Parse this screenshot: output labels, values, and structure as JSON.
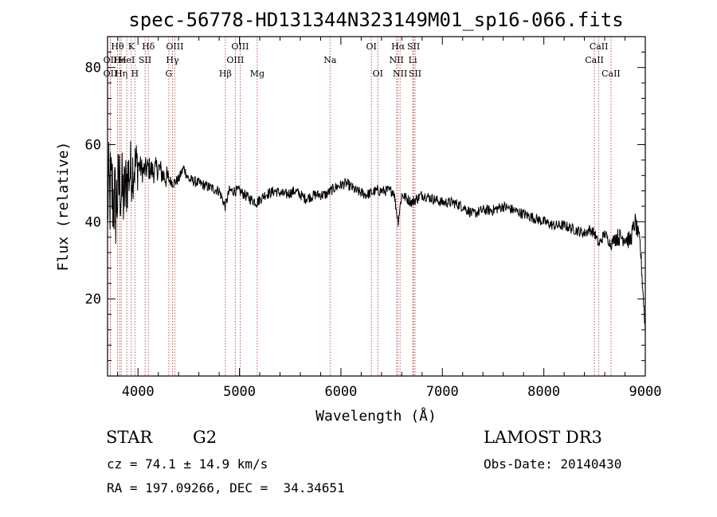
{
  "chart_data": {
    "type": "line",
    "title": "spec-56778-HD131344N323149M01_sp16-066.fits",
    "xlabel": "Wavelength (Å)",
    "ylabel": "Flux (relative)",
    "xlim": [
      3700,
      9000
    ],
    "ylim": [
      0,
      88
    ],
    "x_ticks": [
      4000,
      5000,
      6000,
      7000,
      8000,
      9000
    ],
    "y_ticks": [
      20,
      40,
      60,
      80
    ],
    "series": [
      {
        "name": "flux",
        "x": [
          3700,
          3740,
          3780,
          3820,
          3860,
          3900,
          3950,
          4000,
          4050,
          4100,
          4150,
          4200,
          4250,
          4300,
          4350,
          4400,
          4450,
          4500,
          4600,
          4700,
          4800,
          4860,
          4900,
          5000,
          5100,
          5170,
          5250,
          5350,
          5450,
          5550,
          5650,
          5750,
          5850,
          5950,
          6050,
          6150,
          6250,
          6350,
          6450,
          6520,
          6563,
          6600,
          6700,
          6800,
          6900,
          7000,
          7100,
          7200,
          7300,
          7400,
          7500,
          7600,
          7700,
          7800,
          7900,
          8000,
          8100,
          8200,
          8300,
          8400,
          8450,
          8500,
          8542,
          8600,
          8662,
          8700,
          8750,
          8800,
          8850,
          8900,
          8950,
          9000
        ],
        "values": [
          46,
          48,
          44,
          50,
          46,
          52,
          54,
          55,
          53,
          54,
          53,
          54,
          52,
          51,
          50,
          51,
          54,
          51,
          50,
          49,
          48,
          44,
          48,
          48,
          46,
          45,
          47,
          48,
          47,
          48,
          46,
          47,
          47,
          49,
          50,
          48,
          47,
          48,
          48,
          48,
          40,
          47,
          45,
          47,
          46,
          45,
          45,
          44,
          42,
          43,
          43,
          44,
          43,
          42,
          41,
          40,
          39,
          39,
          38,
          37,
          38,
          37,
          34,
          37,
          34,
          36,
          36,
          36,
          35,
          40,
          34,
          12
        ]
      }
    ],
    "spectral_lines": [
      {
        "label": "OII",
        "x": 3727,
        "row": 2
      },
      {
        "label": "OII",
        "x": 3727,
        "row": 3
      },
      {
        "label": "Hθ",
        "x": 3798,
        "row": 1
      },
      {
        "label": "He",
        "x": 3820,
        "row": 2
      },
      {
        "label": "Hη",
        "x": 3835,
        "row": 3
      },
      {
        "label": "K",
        "x": 3934,
        "row": 1
      },
      {
        "label": "H",
        "x": 3969,
        "row": 3
      },
      {
        "label": "HeI",
        "x": 3889,
        "row": 2
      },
      {
        "label": "SII",
        "x": 4070,
        "row": 2
      },
      {
        "label": "Hδ",
        "x": 4102,
        "row": 1
      },
      {
        "label": "OIII",
        "x": 4363,
        "row": 1
      },
      {
        "label": "Hγ",
        "x": 4340,
        "row": 2
      },
      {
        "label": "G",
        "x": 4304,
        "row": 3
      },
      {
        "label": "Hβ",
        "x": 4861,
        "row": 3
      },
      {
        "label": "OIII",
        "x": 5007,
        "row": 1
      },
      {
        "label": "OIII",
        "x": 4959,
        "row": 2
      },
      {
        "label": "Mg",
        "x": 5175,
        "row": 3
      },
      {
        "label": "Na",
        "x": 5893,
        "row": 2
      },
      {
        "label": "OI",
        "x": 6300,
        "row": 1
      },
      {
        "label": "OI",
        "x": 6364,
        "row": 3
      },
      {
        "label": "Hα",
        "x": 6563,
        "row": 1
      },
      {
        "label": "SII",
        "x": 6716,
        "row": 1
      },
      {
        "label": "NII",
        "x": 6548,
        "row": 2
      },
      {
        "label": "Li",
        "x": 6708,
        "row": 2
      },
      {
        "label": "NII",
        "x": 6583,
        "row": 3
      },
      {
        "label": "SII",
        "x": 6731,
        "row": 3
      },
      {
        "label": "CaII",
        "x": 8542,
        "row": 1
      },
      {
        "label": "CaII",
        "x": 8498,
        "row": 2
      },
      {
        "label": "CaII",
        "x": 8662,
        "row": 3
      }
    ]
  },
  "info": {
    "class": "STAR",
    "subclass": "G2",
    "survey": "LAMOST DR3",
    "cz": "cz = 74.1 ± 14.9 km/s",
    "obs_date": "Obs-Date: 20140430",
    "coords": "RA = 197.09266, DEC =  34.34651"
  },
  "colors": {
    "line": "#000000",
    "marker": "#b03030",
    "axes": "#000000"
  }
}
